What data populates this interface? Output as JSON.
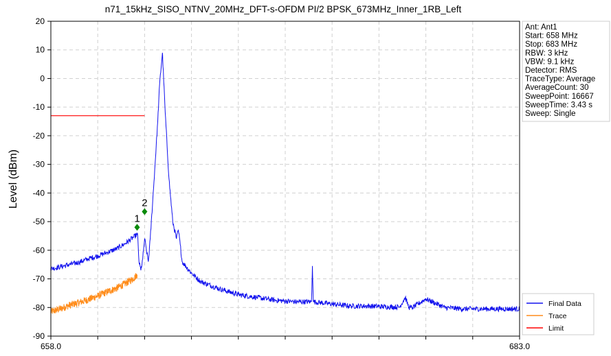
{
  "chart_data": {
    "type": "line",
    "title": "n71_15kHz_SISO_NTNV_20MHz_DFT-s-OFDM PI/2 BPSK_673MHz_Inner_1RB_Left",
    "xlabel": "",
    "ylabel": "Level (dBm)",
    "xlim": [
      658.0,
      683.0
    ],
    "ylim": [
      -90,
      20
    ],
    "x_tick_labels": [
      "658.0",
      "683.0"
    ],
    "y_ticks": [
      20,
      10,
      0,
      -10,
      -20,
      -30,
      -40,
      -50,
      -60,
      -70,
      -80,
      -90
    ],
    "grid": true,
    "legend_position": "bottom-right",
    "info_lines": [
      "Ant: Ant1",
      "Start: 658 MHz",
      "Stop: 683 MHz",
      "RBW: 3 kHz",
      "VBW: 9.1 kHz",
      "Detector: RMS",
      "TraceType: Average",
      "AverageCount: 30",
      "SweepPoint: 16667",
      "SweepTime: 3.43 s",
      "Sweep: Single"
    ],
    "series": [
      {
        "name": "Final Data",
        "color": "#1010ee",
        "x": [
          658.0,
          658.5,
          659.0,
          659.5,
          660.0,
          660.5,
          661.0,
          661.5,
          662.0,
          662.4,
          662.6,
          662.62,
          662.7,
          662.8,
          662.9,
          663.0,
          663.1,
          663.2,
          663.3,
          663.5,
          663.7,
          663.8,
          663.95,
          664.1,
          664.3,
          664.5,
          664.7,
          664.8,
          664.9,
          665.0,
          665.5,
          666.0,
          667.0,
          668.0,
          669.0,
          670.0,
          671.0,
          671.9,
          671.95,
          672.0,
          673.0,
          674.0,
          675.0,
          676.0,
          676.6,
          676.9,
          677.1,
          677.2,
          677.3,
          678.0,
          679.0,
          680.0,
          681.0,
          682.0,
          683.0
        ],
        "y": [
          -66.5,
          -65.8,
          -65.0,
          -64.2,
          -63.0,
          -62.0,
          -60.8,
          -59.5,
          -57.5,
          -55.5,
          -54.5,
          -54.0,
          -64.0,
          -67.0,
          -63.0,
          -56.0,
          -60.0,
          -64.0,
          -56.0,
          -36.0,
          -15.0,
          -2.0,
          9.0,
          -12.0,
          -35.0,
          -50.0,
          -56.0,
          -53.0,
          -58.0,
          -64.0,
          -68.0,
          -71.0,
          -73.5,
          -75.5,
          -76.5,
          -77.5,
          -78.0,
          -78.0,
          -65.5,
          -78.0,
          -78.8,
          -79.5,
          -79.5,
          -79.8,
          -79.8,
          -76.5,
          -80.0,
          -80.0,
          -80.0,
          -77.0,
          -80.0,
          -80.5,
          -80.5,
          -80.5,
          -80.5
        ]
      },
      {
        "name": "Trace",
        "color": "#ff8c1a",
        "x": [
          658.0,
          658.5,
          659.0,
          659.5,
          660.0,
          660.5,
          661.0,
          661.5,
          662.0,
          662.3,
          662.5,
          662.6
        ],
        "y": [
          -81.5,
          -80.5,
          -79.2,
          -78.3,
          -77.2,
          -76.0,
          -74.5,
          -73.3,
          -71.5,
          -70.3,
          -69.3,
          -68.5
        ]
      },
      {
        "name": "Limit",
        "color": "#ff0000",
        "x": [
          658.0,
          663.0
        ],
        "y": [
          -13.0,
          -13.0
        ]
      }
    ],
    "markers": [
      {
        "label": "1",
        "x": 662.6,
        "y": -52.0,
        "color": "#0a8a0a"
      },
      {
        "label": "2",
        "x": 663.0,
        "y": -46.5,
        "color": "#0a8a0a"
      }
    ]
  }
}
